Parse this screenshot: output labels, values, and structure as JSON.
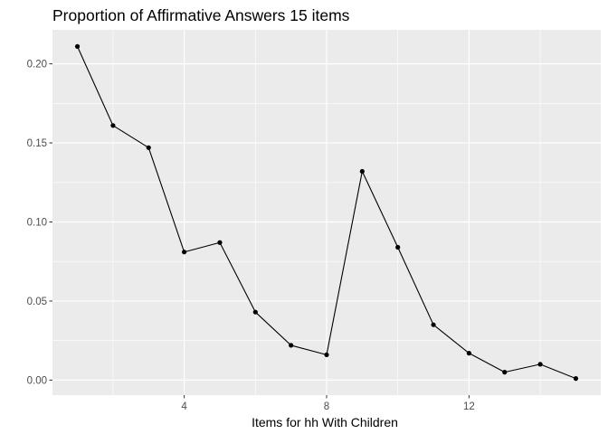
{
  "chart_data": {
    "type": "line",
    "title": "Proportion of Affirmative Answers 15 items",
    "xlabel": "Items for hh With Children",
    "ylabel": "",
    "x": [
      1,
      2,
      3,
      4,
      5,
      6,
      7,
      8,
      9,
      10,
      11,
      12,
      13,
      14,
      15
    ],
    "series": [
      {
        "values": [
          0.211,
          0.161,
          0.147,
          0.081,
          0.087,
          0.043,
          0.022,
          0.016,
          0.132,
          0.084,
          0.035,
          0.017,
          0.005,
          0.01,
          0.001
        ]
      }
    ],
    "xlim": [
      0.3,
      15.7
    ],
    "ylim": [
      -0.0095,
      0.2215
    ],
    "x_ticks": [
      4,
      8,
      12
    ],
    "x_minor_ticks": [
      2,
      6,
      10,
      14
    ],
    "y_ticks": [
      0.0,
      0.05,
      0.1,
      0.15,
      0.2
    ],
    "y_tick_labels": [
      "0.00",
      "0.05",
      "0.10",
      "0.15",
      "0.20"
    ],
    "y_minor_ticks": [
      0.025,
      0.075,
      0.125,
      0.175
    ],
    "grid": true,
    "legend": "none",
    "colors": {
      "panel_background": "#ebebeb",
      "grid": "#ffffff",
      "line": "#000000",
      "point": "#000000",
      "tick_text": "#4d4d4d"
    }
  }
}
